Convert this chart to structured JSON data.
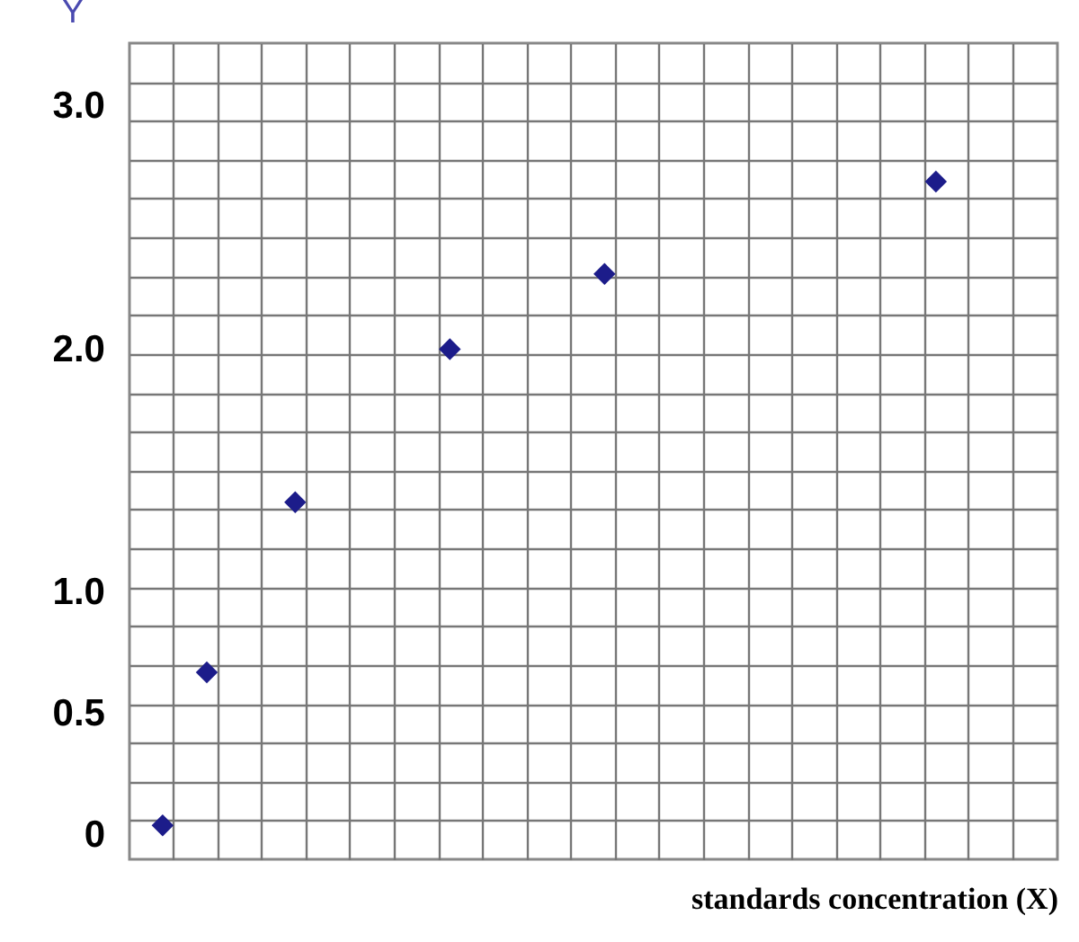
{
  "chart_data": {
    "type": "scatter",
    "xlabel": "standards concentration (X)",
    "ylabel": "Y",
    "categories": [
      null,
      null,
      null,
      null,
      null,
      null,
      null,
      null,
      null,
      null,
      null,
      null,
      null,
      null,
      null,
      null,
      null,
      null,
      null,
      null,
      null,
      null,
      null,
      null,
      null,
      null,
      null,
      null,
      null,
      null,
      null,
      null,
      null,
      null,
      null,
      null,
      null,
      null,
      null,
      null,
      null,
      null
    ],
    "values": [
      null,
      0.04,
      null,
      0.67,
      null,
      null,
      null,
      1.37,
      null,
      null,
      null,
      null,
      null,
      null,
      2.0,
      null,
      null,
      null,
      null,
      null,
      null,
      2.31,
      null,
      null,
      null,
      null,
      null,
      null,
      null,
      null,
      null,
      null,
      null,
      null,
      null,
      null,
      2.69,
      null,
      null,
      null,
      null,
      null
    ],
    "color": "#1c1c8a",
    "marker": "diamond",
    "ylim": [
      -0.1,
      3.26
    ],
    "yticks": [
      0,
      {
        "value": 0.06,
        "label": null
      },
      {
        "value": 0.22,
        "label": null
      },
      {
        "value": 0.38,
        "label": null
      },
      {
        "value": 0.5,
        "label": "0.5"
      },
      {
        "value": 0.54,
        "label": null
      },
      {
        "value": 0.7,
        "label": null
      },
      {
        "value": 0.86,
        "label": null
      },
      {
        "value": 1,
        "label": "1.0"
      },
      {
        "value": 1.02,
        "label": null
      },
      {
        "value": 1.18,
        "label": null
      },
      {
        "value": 1.34,
        "label": null
      },
      {
        "value": 1.5,
        "label": null
      },
      {
        "value": 1.66,
        "label": null
      },
      {
        "value": 1.82,
        "label": null
      },
      {
        "value": 1.98,
        "label": null
      },
      {
        "value": 2,
        "label": "2.0"
      },
      {
        "value": 2.14,
        "label": null
      },
      {
        "value": 2.3,
        "label": null
      },
      {
        "value": 2.46,
        "label": null
      },
      {
        "value": 2.62,
        "label": null
      },
      {
        "value": 2.78,
        "label": null
      },
      {
        "value": 2.94,
        "label": null
      },
      {
        "value": 3,
        "label": "3.0"
      },
      {
        "value": 3.1,
        "label": null
      }
    ],
    "grid": true,
    "tick_labels": "y"
  }
}
